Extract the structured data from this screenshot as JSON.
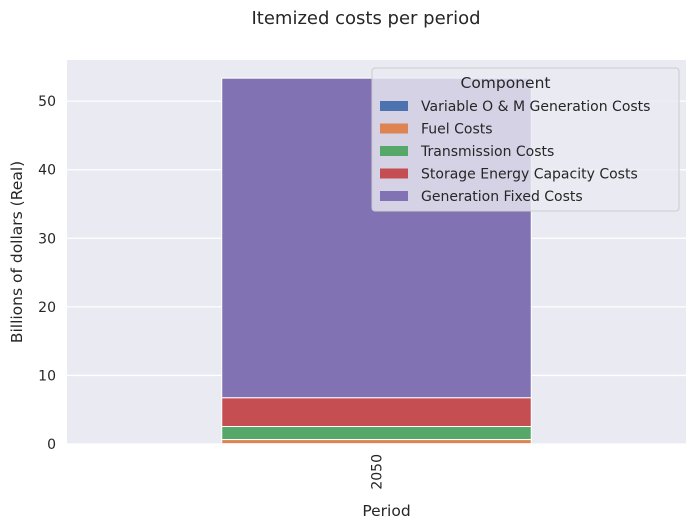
{
  "chart_data": {
    "type": "bar",
    "stacked": true,
    "title": "Itemized costs per period",
    "xlabel": "Period",
    "ylabel": "Billions of dollars (Real)",
    "categories": [
      "2050"
    ],
    "ylim": [
      0,
      56
    ],
    "yticks": [
      0,
      10,
      20,
      30,
      40,
      50
    ],
    "grid": true,
    "legend": {
      "title": "Component",
      "placement": "top-right"
    },
    "series": [
      {
        "name": "Variable O & M Generation Costs",
        "values": [
          0.05
        ],
        "color": "#4c72b0"
      },
      {
        "name": "Fuel Costs",
        "values": [
          0.6
        ],
        "color": "#dd8452"
      },
      {
        "name": "Transmission Costs",
        "values": [
          1.9
        ],
        "color": "#55a868"
      },
      {
        "name": "Storage Energy Capacity Costs",
        "values": [
          4.2
        ],
        "color": "#c44e52"
      },
      {
        "name": "Generation Fixed Costs",
        "values": [
          46.6
        ],
        "color": "#8172b3"
      }
    ],
    "colors": {
      "plot_background": "#eaeaf2",
      "grid": "#ffffff",
      "text": "#262626"
    }
  }
}
